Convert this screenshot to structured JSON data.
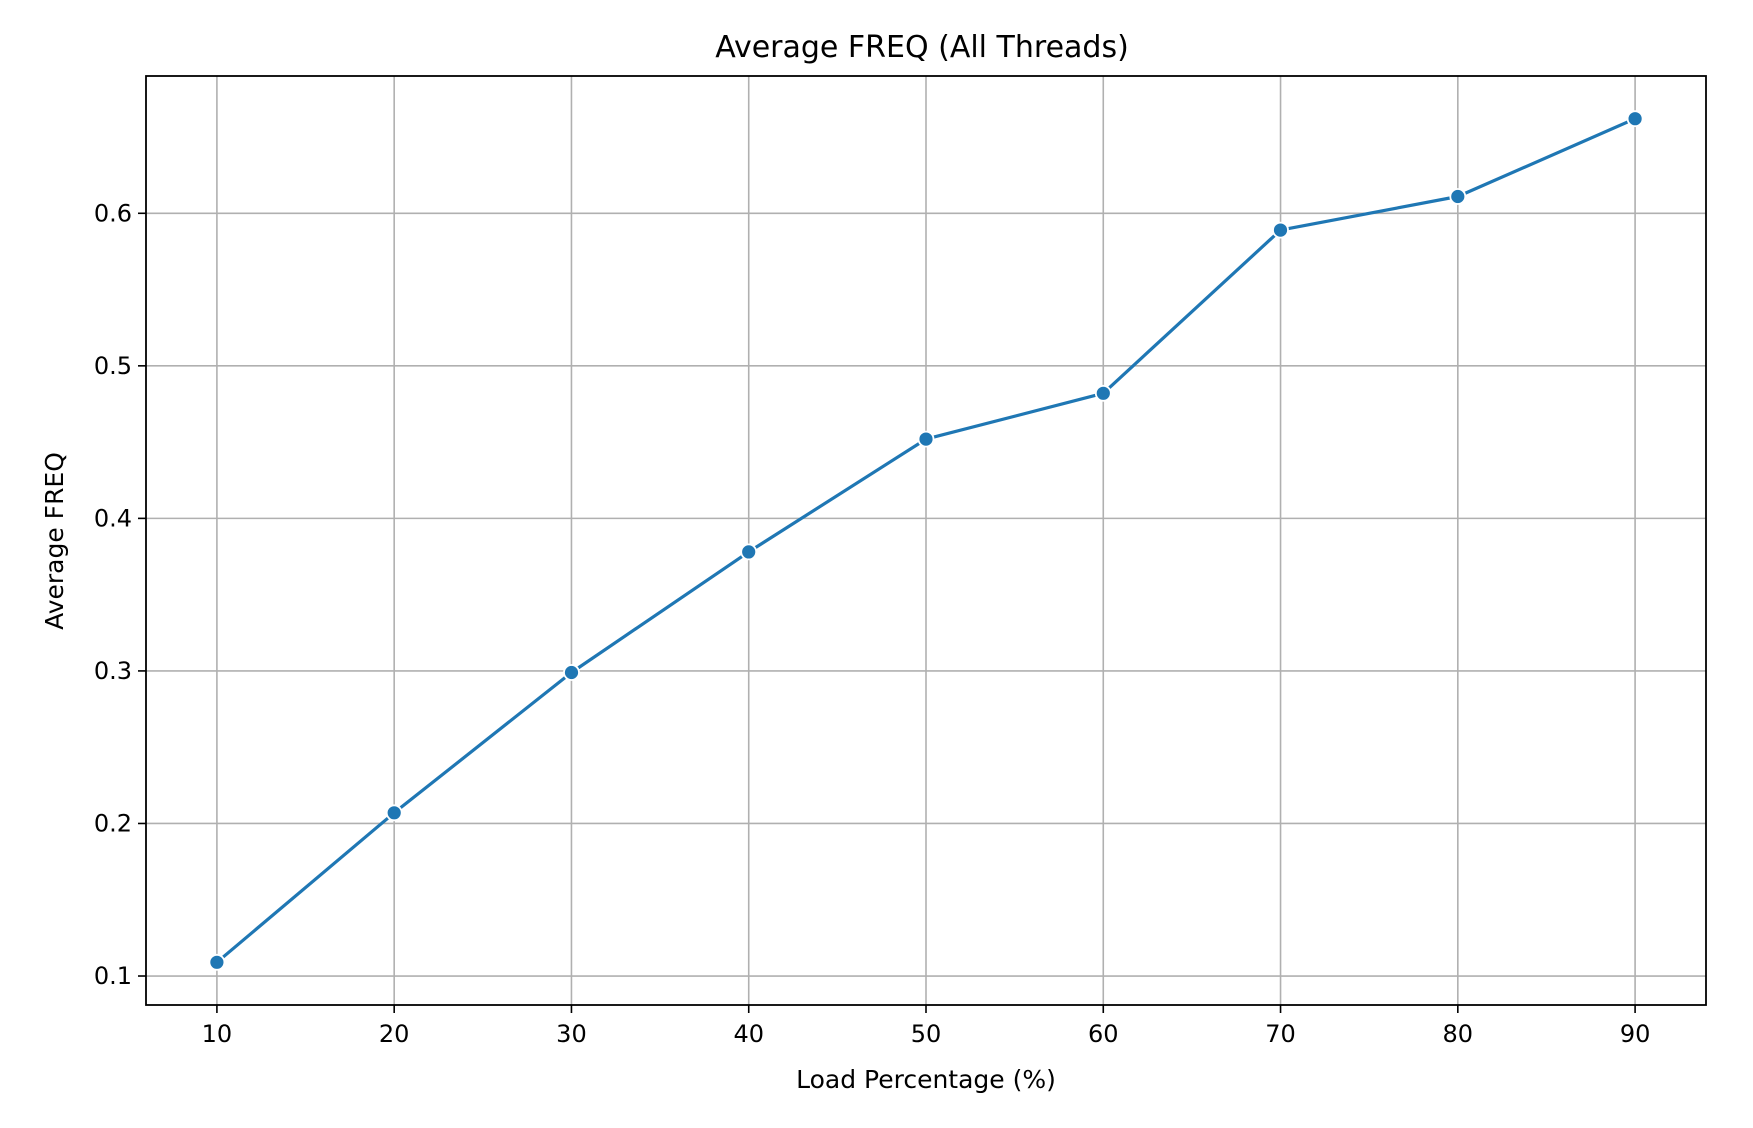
{
  "chart_data": {
    "type": "line",
    "title": "Average FREQ (All Threads)",
    "xlabel": "Load Percentage (%)",
    "ylabel": "Average FREQ",
    "x": [
      10,
      20,
      30,
      40,
      50,
      60,
      70,
      80,
      90
    ],
    "series": [
      {
        "values": [
          0.109,
          0.207,
          0.299,
          0.378,
          0.452,
          0.482,
          0.589,
          0.611,
          0.662
        ]
      }
    ],
    "xlim": [
      6,
      94
    ],
    "ylim": [
      0.081,
      0.69
    ],
    "x_ticks": [
      "10",
      "20",
      "30",
      "40",
      "50",
      "60",
      "70",
      "80",
      "90"
    ],
    "y_ticks": [
      "0.1",
      "0.2",
      "0.3",
      "0.4",
      "0.5",
      "0.6"
    ],
    "grid": true,
    "legend": "none",
    "colors": {
      "line": "#1f77b4",
      "grid": "#b0b0b0",
      "axis": "#000000",
      "marker_edge": "#ffffff"
    },
    "marker": "circle"
  }
}
